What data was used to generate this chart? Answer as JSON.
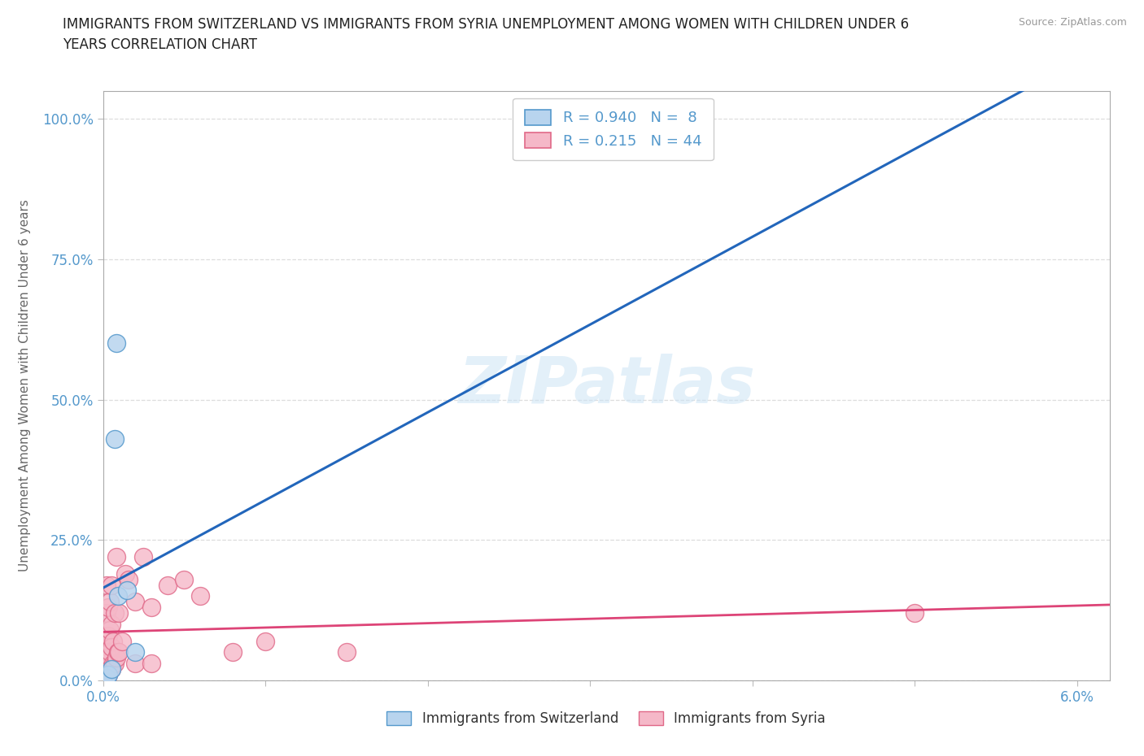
{
  "title_line1": "IMMIGRANTS FROM SWITZERLAND VS IMMIGRANTS FROM SYRIA UNEMPLOYMENT AMONG WOMEN WITH CHILDREN UNDER 6",
  "title_line2": "YEARS CORRELATION CHART",
  "source_text": "Source: ZipAtlas.com",
  "ylabel": "Unemployment Among Women with Children Under 6 years",
  "xlim": [
    0.0,
    0.062
  ],
  "ylim": [
    0.0,
    1.05
  ],
  "xtick_positions": [
    0.0,
    0.01,
    0.02,
    0.03,
    0.04,
    0.05,
    0.06
  ],
  "xtick_labels": [
    "0.0%",
    "",
    "",
    "",
    "",
    "",
    "6.0%"
  ],
  "ytick_positions": [
    0.0,
    0.25,
    0.5,
    0.75,
    1.0
  ],
  "ytick_labels": [
    "0.0%",
    "25.0%",
    "50.0%",
    "75.0%",
    "100.0%"
  ],
  "background_color": "#ffffff",
  "grid_color": "#dddddd",
  "sw_fill": "#b8d4ee",
  "sw_edge": "#5599cc",
  "sy_fill": "#f5b8c8",
  "sy_edge": "#e06888",
  "line_sw": "#2266bb",
  "line_sy": "#dd4477",
  "tick_label_color": "#5599cc",
  "legend_r_sw": "0.940",
  "legend_n_sw": "8",
  "legend_r_sy": "0.215",
  "legend_n_sy": "44",
  "watermark": "ZIPatlas",
  "sw_x": [
    0.0002,
    0.0003,
    0.0005,
    0.0007,
    0.0008,
    0.0009,
    0.0015,
    0.002
  ],
  "sw_y": [
    0.005,
    0.01,
    0.02,
    0.43,
    0.6,
    0.15,
    0.16,
    0.05
  ],
  "sy_x": [
    0.0001,
    0.0001,
    0.0001,
    0.0002,
    0.0002,
    0.0002,
    0.0002,
    0.0002,
    0.0003,
    0.0003,
    0.0003,
    0.0003,
    0.0004,
    0.0004,
    0.0004,
    0.0004,
    0.0005,
    0.0005,
    0.0005,
    0.0005,
    0.0006,
    0.0006,
    0.0007,
    0.0007,
    0.0008,
    0.0008,
    0.0009,
    0.001,
    0.001,
    0.0012,
    0.0014,
    0.0016,
    0.002,
    0.002,
    0.0025,
    0.003,
    0.003,
    0.004,
    0.005,
    0.006,
    0.008,
    0.01,
    0.015,
    0.05
  ],
  "sy_y": [
    0.005,
    0.02,
    0.06,
    0.0,
    0.03,
    0.07,
    0.12,
    0.17,
    0.01,
    0.04,
    0.08,
    0.13,
    0.02,
    0.05,
    0.09,
    0.14,
    0.02,
    0.06,
    0.1,
    0.17,
    0.03,
    0.07,
    0.03,
    0.12,
    0.04,
    0.22,
    0.05,
    0.05,
    0.12,
    0.07,
    0.19,
    0.18,
    0.03,
    0.14,
    0.22,
    0.03,
    0.13,
    0.17,
    0.18,
    0.15,
    0.05,
    0.07,
    0.05,
    0.12
  ]
}
